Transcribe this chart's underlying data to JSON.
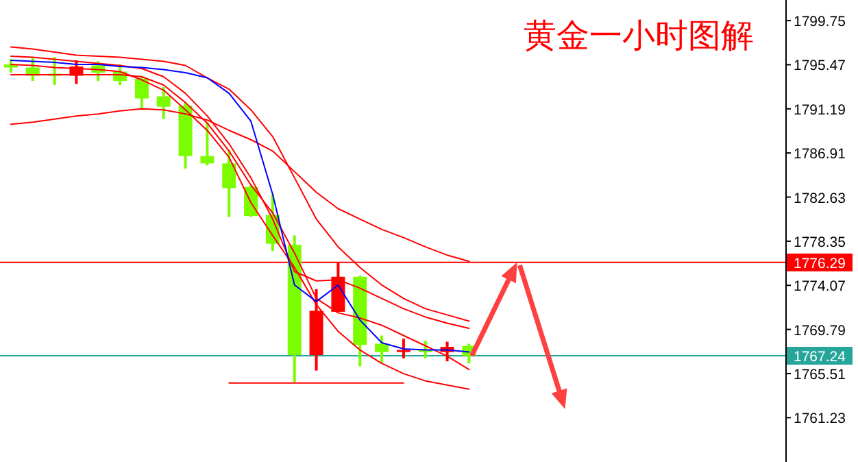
{
  "chart_data": {
    "type": "candlestick",
    "title": "黄金一小时图解",
    "categories": [
      null,
      null,
      null,
      null,
      null,
      null,
      null,
      null,
      null,
      null,
      null,
      null,
      null,
      null,
      null,
      null,
      null,
      null,
      null,
      null,
      null,
      null,
      null,
      null,
      null,
      null,
      null,
      null,
      null,
      null,
      null,
      null,
      null,
      null,
      null,
      null
    ],
    "ohlc": [
      [
        1795.5,
        1796.0,
        1794.7,
        1795.2
      ],
      [
        1795.2,
        1796.2,
        1793.9,
        1794.4
      ],
      [
        1794.6,
        1796.2,
        1793.5,
        1794.4
      ],
      [
        1794.4,
        1795.9,
        1793.6,
        1795.3
      ],
      [
        1795.4,
        1795.8,
        1793.9,
        1794.7
      ],
      [
        1794.8,
        1795.5,
        1793.5,
        1793.9
      ],
      [
        1794.1,
        1794.4,
        1791.2,
        1792.2
      ],
      [
        1792.4,
        1793.3,
        1790.2,
        1791.4
      ],
      [
        1791.5,
        1791.8,
        1785.4,
        1786.6
      ],
      [
        1786.6,
        1789.9,
        1785.7,
        1785.9
      ],
      [
        1785.9,
        1787.2,
        1780.7,
        1783.5
      ],
      [
        1783.6,
        1783.8,
        1780.7,
        1780.8
      ],
      [
        1780.9,
        1782.9,
        1777.4,
        1778.1
      ],
      [
        1778.0,
        1778.9,
        1764.7,
        1767.3
      ],
      [
        1767.3,
        1773.7,
        1765.8,
        1771.6
      ],
      [
        1771.5,
        1776.3,
        1771.5,
        1774.9
      ],
      [
        1774.9,
        1775.0,
        1766.2,
        1768.3
      ],
      [
        1768.4,
        1769.2,
        1766.5,
        1767.6
      ],
      [
        1767.6,
        1768.9,
        1767.0,
        1767.8
      ],
      [
        1767.8,
        1768.7,
        1767.0,
        1767.6
      ],
      [
        1767.6,
        1768.6,
        1766.7,
        1768.1
      ],
      [
        1768.2,
        1768.4,
        1766.5,
        1767.24
      ],
      null,
      null,
      null,
      null,
      null,
      null,
      null,
      null,
      null,
      null,
      null,
      null,
      null,
      null
    ],
    "colors": [
      "#7cfc00",
      "#7cfc00",
      "#7cfc00",
      "#ff0000",
      "#7cfc00",
      "#7cfc00",
      "#7cfc00",
      "#7cfc00",
      "#7cfc00",
      "#7cfc00",
      "#7cfc00",
      "#7cfc00",
      "#7cfc00",
      "#7cfc00",
      "#ff0000",
      "#ff0000",
      "#7cfc00",
      "#7cfc00",
      "#ff0000",
      "#7cfc00",
      "#ff0000",
      "#7cfc00",
      null,
      null,
      null,
      null,
      null,
      null,
      null,
      null,
      null,
      null,
      null,
      null,
      null,
      null
    ],
    "series": [
      {
        "type": "line",
        "color": "#ff0000",
        "values": [
          1789.7,
          1789.9,
          1790.2,
          1790.5,
          1790.7,
          1791.0,
          1791.2,
          1791.1,
          1790.7,
          1790.1,
          1789.1,
          1788.2,
          1787.1,
          1785.1,
          1783.1,
          1781.5,
          1780.5,
          1779.5,
          1778.7,
          1777.8,
          1777.0,
          1776.4,
          null,
          null,
          null,
          null,
          null,
          null,
          null,
          null,
          null,
          null,
          null,
          null,
          null,
          null
        ]
      },
      {
        "type": "line",
        "color": "#ff0000",
        "values": [
          1797.2,
          1797.0,
          1796.7,
          1796.4,
          1796.3,
          1796.2,
          1796.0,
          1795.8,
          1795.4,
          1794.2,
          1793.1,
          1791.1,
          1788.5,
          1784.5,
          1780.5,
          1777.8,
          1775.8,
          1774.1,
          1772.8,
          1771.8,
          1771.2,
          1770.6,
          null,
          null,
          null,
          null,
          null,
          null,
          null,
          null,
          null,
          null,
          null,
          null,
          null,
          null
        ]
      },
      {
        "type": "line",
        "color": "#ff0000",
        "values": [
          1796.3,
          1796.2,
          1796.0,
          1795.8,
          1795.6,
          1795.4,
          1795.1,
          1794.3,
          1792.7,
          1790.5,
          1787.8,
          1784.5,
          1780.5,
          1775.4,
          1774.5,
          1774.6,
          1773.8,
          1772.8,
          1771.8,
          1771.0,
          1770.4,
          1769.9,
          null,
          null,
          null,
          null,
          null,
          null,
          null,
          null,
          null,
          null,
          null,
          null,
          null,
          null
        ]
      },
      {
        "type": "line",
        "color": "#ff0000",
        "values": [
          1794.5,
          1794.5,
          1794.5,
          1794.5,
          1794.5,
          1794.5,
          1794.3,
          1793.5,
          1791.8,
          1789.8,
          1787.1,
          1783.8,
          1781.1,
          1777.2,
          1772.8,
          1771.4,
          1770.9,
          1770.2,
          1769.2,
          1768.2,
          1767.2,
          1765.9,
          null,
          null,
          null,
          null,
          null,
          null,
          null,
          null,
          null,
          null,
          null,
          null,
          null,
          null
        ]
      },
      {
        "type": "line",
        "color": "#ff0000",
        "values": [
          1795.5,
          1795.4,
          1795.2,
          1795.1,
          1795.0,
          1794.8,
          1794.0,
          1793.0,
          1791.1,
          1789.1,
          1786.5,
          1782.1,
          1778.9,
          1775.8,
          1772.2,
          1769.6,
          1767.8,
          1766.5,
          1765.5,
          1764.8,
          1764.4,
          1764.0,
          null,
          null,
          null,
          null,
          null,
          null,
          null,
          null,
          null,
          null,
          null,
          null,
          null,
          null
        ]
      },
      {
        "type": "line",
        "color": "#0000ff",
        "values": [
          1795.9,
          1795.8,
          1795.7,
          1795.5,
          1795.5,
          1795.3,
          1795.2,
          1795.0,
          1794.7,
          1794.2,
          1792.7,
          1790.0,
          1782.9,
          1774.1,
          1772.5,
          1774.1,
          1770.7,
          1768.5,
          1767.9,
          1767.8,
          1767.8,
          1767.6,
          null,
          null,
          null,
          null,
          null,
          null,
          null,
          null,
          null,
          null,
          null,
          null,
          null,
          null
        ]
      },
      {
        "type": "line",
        "color": "#ff0000",
        "values": [
          null,
          null,
          null,
          null,
          null,
          null,
          null,
          null,
          null,
          null,
          1764.6,
          1764.6,
          1764.6,
          1764.6,
          1764.6,
          1764.6,
          1764.6,
          1764.6,
          1764.6,
          null,
          null,
          null,
          null,
          null,
          null,
          null,
          null,
          null,
          null,
          null,
          null,
          null,
          null,
          null,
          null,
          null
        ]
      }
    ],
    "ylim": [
      1756.93,
      1801.75
    ],
    "yticks": [
      1799.75,
      1795.47,
      1791.19,
      1786.91,
      1782.63,
      1778.35,
      1774.07,
      1769.79,
      1765.51,
      1761.23
    ],
    "tick_labels": "y",
    "ref_lines": [
      {
        "axis": "y",
        "value": 1776.29,
        "label": "1776.29",
        "color": "#ff0000"
      },
      {
        "axis": "y",
        "value": 1767.24,
        "label": "1767.24",
        "color": "#26a69a"
      }
    ]
  }
}
